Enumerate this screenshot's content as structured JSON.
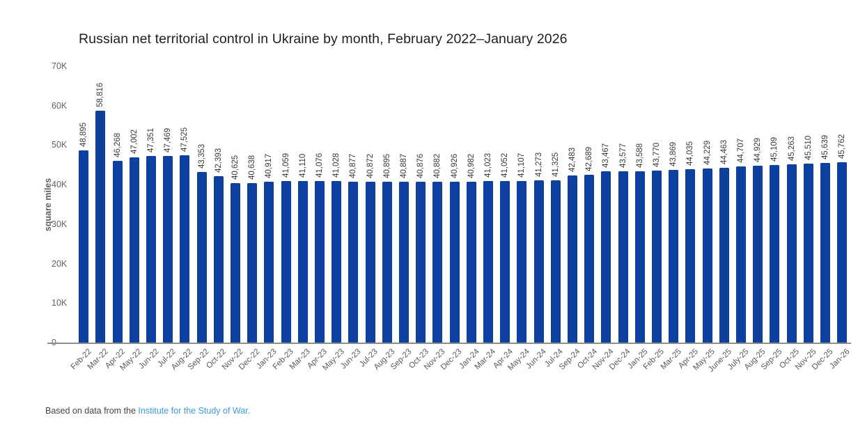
{
  "title": "Russian net territorial control in Ukraine by month, February 2022–January 2026",
  "footer": {
    "prefix": "Based on data from the ",
    "link_text": "Institute for the Study of War."
  },
  "colors": {
    "bar": "#0e40a0",
    "title_text": "#1f1f1f",
    "axis_text": "#616161",
    "value_label_text": "#3a3a3a",
    "link": "#3e9bd8",
    "baseline": "#8f8f8f"
  },
  "chart_data": {
    "type": "bar",
    "title": "Russian net territorial control in Ukraine by month, February 2022–January 2026",
    "xlabel": "",
    "ylabel": "square miles",
    "ylim": [
      0,
      70000
    ],
    "grid": false,
    "legend": "none",
    "value_labels_rotated": true,
    "yticks": [
      {
        "value": 0,
        "label": "0"
      },
      {
        "value": 10000,
        "label": "10K"
      },
      {
        "value": 20000,
        "label": "20K"
      },
      {
        "value": 30000,
        "label": "30K"
      },
      {
        "value": 40000,
        "label": "40K"
      },
      {
        "value": 50000,
        "label": "50K"
      },
      {
        "value": 60000,
        "label": "60K"
      },
      {
        "value": 70000,
        "label": "70K"
      }
    ],
    "categories": [
      "Feb-22",
      "Mar-22",
      "Apr-22",
      "May-22",
      "Jun-22",
      "Jul-22",
      "Aug-22",
      "Sep-22",
      "Oct-22",
      "Nov-22",
      "Dec-22",
      "Jan-23",
      "Feb-23",
      "Mar-23",
      "Apr-23",
      "May-23",
      "Jun-23",
      "Jul-23",
      "Aug-23",
      "Sep-23",
      "Oct-23",
      "Nov-23",
      "Dec-23",
      "Jan-24",
      "Mar-24",
      "Apr-24",
      "May-24",
      "Jun-24",
      "Jul-24",
      "Sep-24",
      "Oct-24",
      "Nov-24",
      "Dec-24",
      "Jan-25",
      "Feb-25",
      "Mar-25",
      "Apr-25",
      "May-25",
      "June-25",
      "July-25",
      "Aug-25",
      "Sep-25",
      "Oct-25",
      "Nov-25",
      "Dec-25",
      "Jan-26"
    ],
    "values": [
      48895,
      58816,
      46268,
      47002,
      47351,
      47469,
      47525,
      43353,
      42393,
      40625,
      40638,
      40917,
      41059,
      41110,
      41076,
      41028,
      40877,
      40872,
      40895,
      40887,
      40876,
      40882,
      40926,
      40982,
      41023,
      41052,
      41107,
      41273,
      41325,
      42483,
      42689,
      43467,
      43577,
      43588,
      43770,
      43869,
      44035,
      44229,
      44463,
      44707,
      44929,
      45109,
      45263,
      45510,
      45639,
      45762
    ]
  }
}
